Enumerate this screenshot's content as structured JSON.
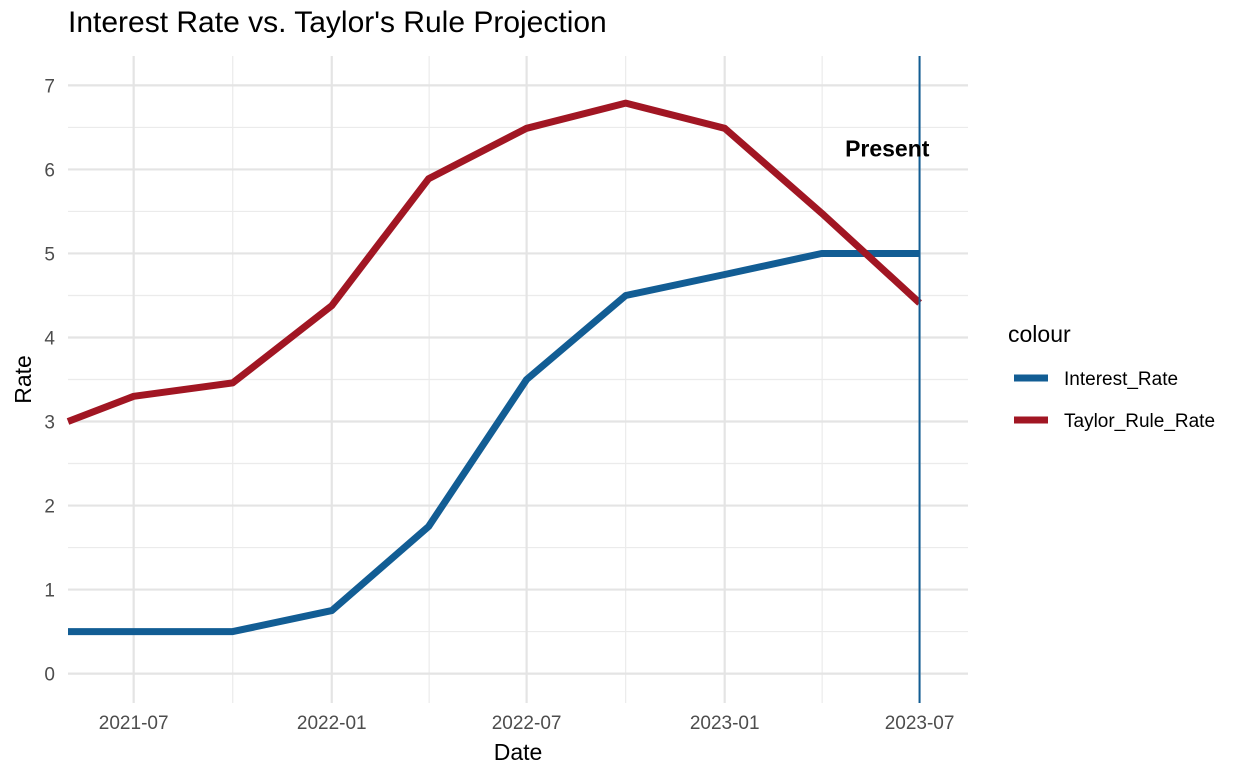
{
  "chart_data": {
    "type": "line",
    "title": "Interest Rate vs. Taylor's Rule Projection",
    "xlabel": "Date",
    "ylabel": "Rate",
    "x": [
      "2021-05-01",
      "2021-07-01",
      "2021-10-01",
      "2022-01-01",
      "2022-04-01",
      "2022-07-01",
      "2022-10-01",
      "2023-01-01",
      "2023-04-01",
      "2023-07-01"
    ],
    "x_ticks": [
      "2021-07-01",
      "2022-01-01",
      "2022-07-01",
      "2023-01-01",
      "2023-07-01"
    ],
    "x_tick_labels": [
      "2021-07",
      "2022-01",
      "2022-07",
      "2023-01",
      "2023-07"
    ],
    "xlim": [
      "2021-05-01",
      "2023-08-15"
    ],
    "ylim": [
      -0.35,
      7.35
    ],
    "y_ticks": [
      0,
      1,
      2,
      3,
      4,
      5,
      6,
      7
    ],
    "grid": true,
    "legend": {
      "title": "colour",
      "position": "right"
    },
    "series": [
      {
        "name": "Interest_Rate",
        "color": "#125d94",
        "values": [
          0.5,
          0.5,
          0.5,
          0.75,
          1.75,
          3.5,
          4.5,
          4.75,
          5.0,
          5.0
        ]
      },
      {
        "name": "Taylor_Rule_Rate",
        "color": "#a11623",
        "values": [
          3.0,
          3.3,
          3.46,
          4.38,
          5.89,
          6.49,
          6.79,
          6.49,
          5.48,
          4.41
        ]
      }
    ],
    "vline": {
      "x": "2023-07-01",
      "color": "#125d94"
    },
    "annotations": [
      {
        "text": "Present",
        "x": "2023-06-01",
        "y": 6.25
      }
    ]
  }
}
